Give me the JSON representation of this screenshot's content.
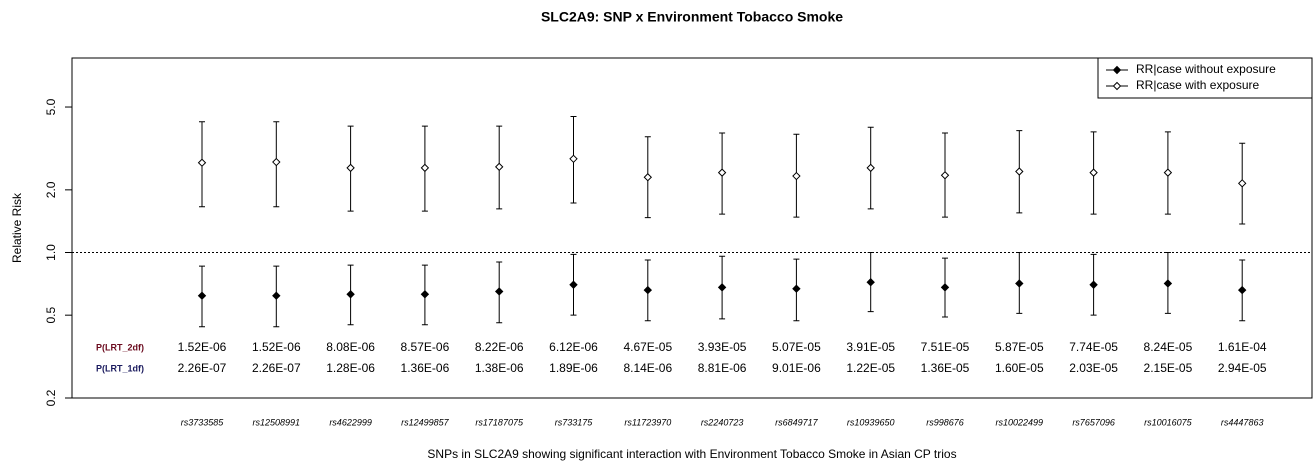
{
  "chart_data": {
    "type": "errorbar",
    "title": "SLC2A9: SNP x Environment Tobacco Smoke",
    "x_label": "SNPs in SLC2A9 showing significant interaction with Environment Tobacco Smoke in Asian CP trios",
    "y_label": "Relative Risk",
    "log_y": true,
    "ylim": [
      0.2,
      8.6
    ],
    "yticks": [
      0.2,
      0.5,
      {
        "value": 1,
        "label": "1.0"
      },
      {
        "value": 2,
        "label": "2.0"
      },
      {
        "value": 5,
        "label": "5.0"
      }
    ],
    "hline": 1,
    "legend": "top-right",
    "categories": [
      "rs3733585",
      "rs12508991",
      "rs4622999",
      "rs12499857",
      "rs17187075",
      "rs733175",
      "rs11723970",
      "rs2240723",
      "rs6849717",
      "rs10939650",
      "rs998676",
      "rs10022499",
      "rs7657096",
      "rs10016075",
      "rs4447863"
    ],
    "series": [
      {
        "name": "RR|case without exposure",
        "color": "#000000",
        "marker": "filled-diamond",
        "values": [
          0.62,
          0.62,
          0.63,
          0.63,
          0.65,
          0.7,
          0.66,
          0.68,
          0.67,
          0.72,
          0.68,
          0.71,
          0.7,
          0.71,
          0.66
        ],
        "lower": [
          0.44,
          0.44,
          0.45,
          0.45,
          0.46,
          0.5,
          0.47,
          0.48,
          0.47,
          0.52,
          0.49,
          0.51,
          0.5,
          0.51,
          0.47
        ],
        "upper": [
          0.86,
          0.86,
          0.87,
          0.87,
          0.9,
          0.98,
          0.92,
          0.96,
          0.93,
          1.0,
          0.94,
          1.0,
          0.98,
          1.0,
          0.92
        ]
      },
      {
        "name": "RR|case with exposure",
        "color": "#000000",
        "marker": "open-diamond",
        "values": [
          2.7,
          2.72,
          2.55,
          2.55,
          2.58,
          2.82,
          2.3,
          2.42,
          2.33,
          2.55,
          2.35,
          2.45,
          2.42,
          2.42,
          2.15
        ],
        "lower": [
          1.66,
          1.66,
          1.58,
          1.58,
          1.62,
          1.73,
          1.47,
          1.53,
          1.48,
          1.62,
          1.48,
          1.55,
          1.53,
          1.53,
          1.37
        ],
        "upper": [
          4.25,
          4.25,
          4.05,
          4.05,
          4.05,
          4.5,
          3.6,
          3.75,
          3.7,
          4.0,
          3.75,
          3.85,
          3.8,
          3.8,
          3.35
        ]
      }
    ],
    "annotation_rows": [
      {
        "label": "P(LRT_2df)",
        "label_color": "#6b0a1e",
        "values": [
          "1.52E-06",
          "1.52E-06",
          "8.08E-06",
          "8.57E-06",
          "8.22E-06",
          "6.12E-06",
          "4.67E-05",
          "3.93E-05",
          "5.07E-05",
          "3.91E-05",
          "7.51E-05",
          "5.87E-05",
          "7.74E-05",
          "8.24E-05",
          "1.61E-04"
        ]
      },
      {
        "label": "P(LRT_1df)",
        "label_color": "#1a1a5e",
        "values": [
          "2.26E-07",
          "2.26E-07",
          "1.28E-06",
          "1.36E-06",
          "1.38E-06",
          "1.89E-06",
          "8.14E-06",
          "8.81E-06",
          "9.01E-06",
          "1.22E-05",
          "1.36E-05",
          "1.60E-05",
          "2.03E-05",
          "2.15E-05",
          "2.94E-05"
        ]
      }
    ]
  }
}
